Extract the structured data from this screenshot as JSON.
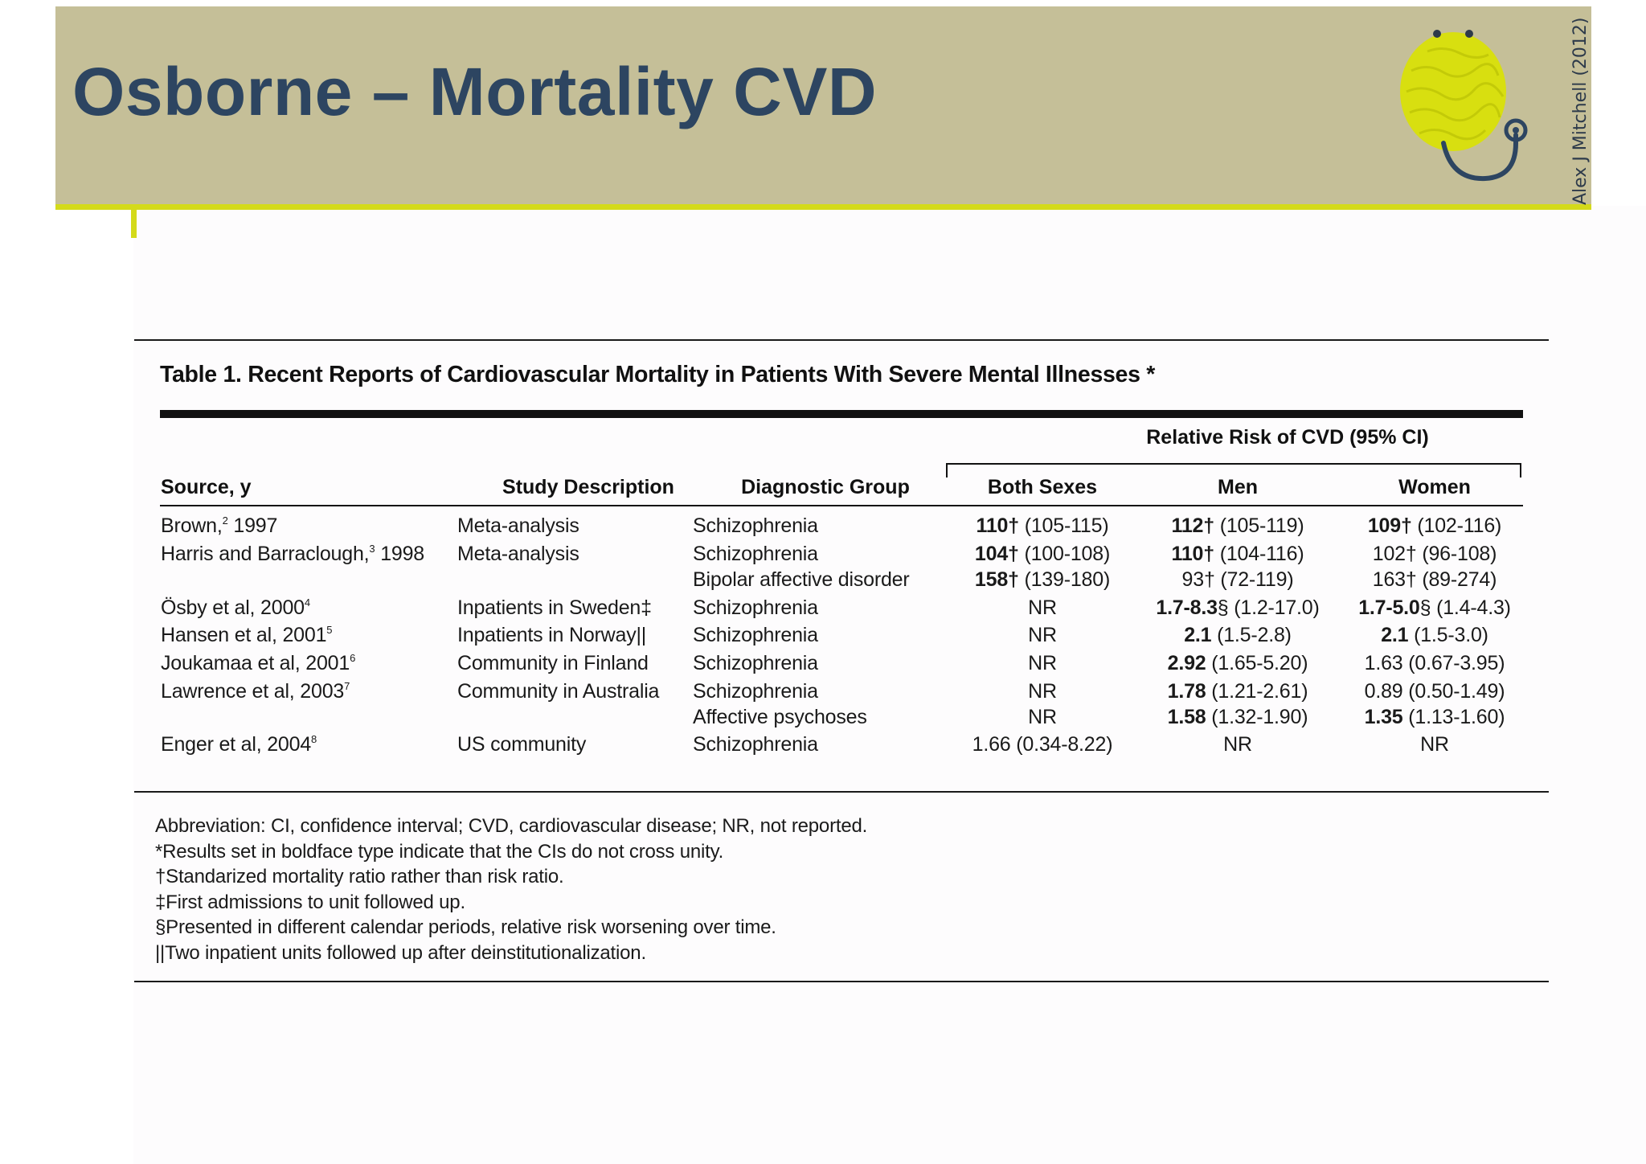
{
  "slide": {
    "title": "Osborne – Mortality CVD",
    "author_credit": "Alex J Mitchell (2012)",
    "logo": "brain-stethoscope-logo",
    "colors": {
      "header_band": "#c5bf98",
      "accent_rule": "#d4da1a",
      "title_text": "#2d4561"
    }
  },
  "table": {
    "caption": "Table 1. Recent Reports of Cardiovascular Mortality in Patients With Severe Mental Illnesses *",
    "group_header": "Relative Risk of CVD (95% CI)",
    "columns": [
      "Source, y",
      "Study Description",
      "Diagnostic Group",
      "Both Sexes",
      "Men",
      "Women"
    ],
    "rows": [
      {
        "source": "Brown, 1997",
        "source_name": "Brown,",
        "source_ref": "2",
        "source_year": " 1997",
        "study": "Meta-analysis",
        "diagnosis": "Schizophrenia",
        "both": {
          "bold": "110†",
          "rest": " (105-115)"
        },
        "men": {
          "bold": "112†",
          "rest": " (105-119)"
        },
        "women": {
          "bold": "109†",
          "rest": " (102-116)"
        }
      },
      {
        "source": "Harris and Barraclough, 1998",
        "source_name": "Harris and Barraclough,",
        "source_ref": "3",
        "source_year": " 1998",
        "study": "Meta-analysis",
        "diagnosis": "Schizophrenia",
        "both": {
          "bold": "104†",
          "rest": " (100-108)"
        },
        "men": {
          "bold": "110†",
          "rest": " (104-116)"
        },
        "women": {
          "bold": "",
          "rest": "102† (96-108)"
        }
      },
      {
        "source": "",
        "source_name": "",
        "source_ref": "",
        "source_year": "",
        "study": "",
        "diagnosis": "Bipolar affective disorder",
        "both": {
          "bold": "158†",
          "rest": " (139-180)"
        },
        "men": {
          "bold": "",
          "rest": "93† (72-119)"
        },
        "women": {
          "bold": "",
          "rest": "163† (89-274)"
        }
      },
      {
        "source": "Ösby et al, 2000",
        "source_name": "Ösby et al, 2000",
        "source_ref": "4",
        "source_year": "",
        "study": "Inpatients in Sweden‡",
        "diagnosis": "Schizophrenia",
        "both": {
          "bold": "",
          "rest": "NR"
        },
        "men": {
          "bold": "1.7-8.3",
          "rest": "§ (1.2-17.0)"
        },
        "women": {
          "bold": "1.7-5.0",
          "rest": "§ (1.4-4.3)"
        }
      },
      {
        "source": "Hansen et al, 2001",
        "source_name": "Hansen et al, 2001",
        "source_ref": "5",
        "source_year": "",
        "study": "Inpatients in Norway||",
        "diagnosis": "Schizophrenia",
        "both": {
          "bold": "",
          "rest": "NR"
        },
        "men": {
          "bold": "2.1",
          "rest": " (1.5-2.8)"
        },
        "women": {
          "bold": "2.1",
          "rest": " (1.5-3.0)"
        }
      },
      {
        "source": "Joukamaa et al, 2001",
        "source_name": "Joukamaa et al, 2001",
        "source_ref": "6",
        "source_year": "",
        "study": "Community in Finland",
        "diagnosis": "Schizophrenia",
        "both": {
          "bold": "",
          "rest": "NR"
        },
        "men": {
          "bold": "2.92",
          "rest": " (1.65-5.20)"
        },
        "women": {
          "bold": "",
          "rest": "1.63 (0.67-3.95)"
        }
      },
      {
        "source": "Lawrence et al, 2003",
        "source_name": "Lawrence et al, 2003",
        "source_ref": "7",
        "source_year": "",
        "study": "Community in Australia",
        "diagnosis": "Schizophrenia",
        "both": {
          "bold": "",
          "rest": "NR"
        },
        "men": {
          "bold": "1.78",
          "rest": " (1.21-2.61)"
        },
        "women": {
          "bold": "",
          "rest": "0.89 (0.50-1.49)"
        }
      },
      {
        "source": "",
        "source_name": "",
        "source_ref": "",
        "source_year": "",
        "study": "",
        "diagnosis": "Affective psychoses",
        "both": {
          "bold": "",
          "rest": "NR"
        },
        "men": {
          "bold": "1.58",
          "rest": " (1.32-1.90)"
        },
        "women": {
          "bold": "1.35",
          "rest": " (1.13-1.60)"
        }
      },
      {
        "source": "Enger et al, 2004",
        "source_name": "Enger et al, 2004",
        "source_ref": "8",
        "source_year": "",
        "study": "US community",
        "diagnosis": "Schizophrenia",
        "both": {
          "bold": "",
          "rest": "1.66 (0.34-8.22)"
        },
        "men": {
          "bold": "",
          "rest": "NR"
        },
        "women": {
          "bold": "",
          "rest": "NR"
        }
      }
    ],
    "footnotes": [
      "Abbreviation: CI, confidence interval; CVD, cardiovascular disease; NR, not reported.",
      "*Results set in boldface type indicate that the CIs do not cross unity.",
      "†Standarized mortality ratio rather than risk ratio.",
      "‡First admissions to unit followed up.",
      "§Presented in different calendar periods, relative risk worsening over time.",
      "||Two inpatient units followed up after deinstitutionalization."
    ]
  }
}
